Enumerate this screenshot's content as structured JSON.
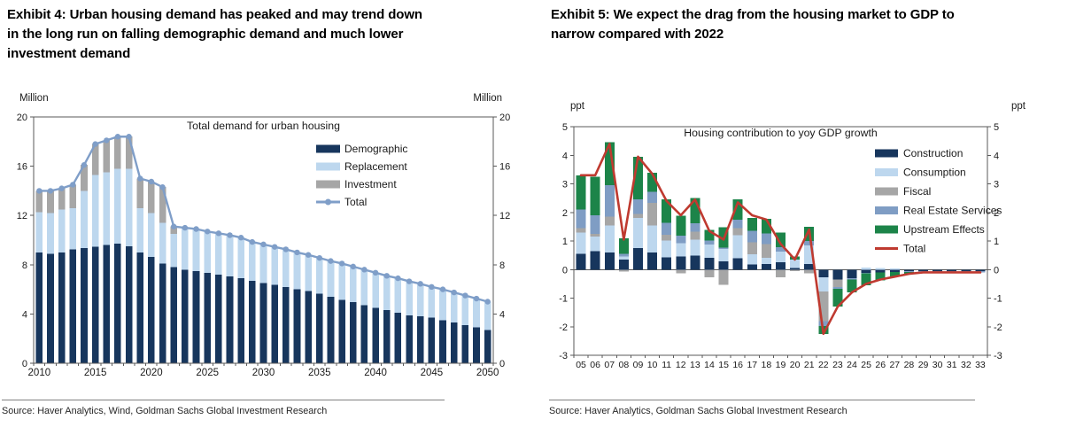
{
  "page": {
    "background": "#ffffff"
  },
  "left_panel": {
    "title_lines": [
      "Exhibit 4: Urban housing demand has peaked and may trend down",
      "in the long run on falling demographic demand and much lower",
      "investment demand"
    ],
    "source": "Source: Haver Analytics, Wind, Goldman Sachs Global Investment Research"
  },
  "right_panel": {
    "title_lines": [
      "Exhibit 5: We expect the drag from the housing market to GDP to",
      "narrow compared with 2022"
    ],
    "source": "Source: Haver Analytics, Goldman Sachs Global Investment Research"
  },
  "chart_data": [
    {
      "type": "bar",
      "stacked": true,
      "title": "Total demand for urban housing",
      "unit_left": "Million",
      "unit_right": "Million",
      "ylim": [
        0,
        20
      ],
      "yticks": [
        0,
        4,
        8,
        12,
        16,
        20
      ],
      "grid": false,
      "legend_position": "upper-right-inside",
      "x_label_every": 5,
      "x": [
        "2010",
        "2011",
        "2012",
        "2013",
        "2014",
        "2015",
        "2016",
        "2017",
        "2018",
        "2019",
        "2020",
        "2021",
        "2022",
        "2023",
        "2024",
        "2025",
        "2026",
        "2027",
        "2028",
        "2029",
        "2030",
        "2031",
        "2032",
        "2033",
        "2034",
        "2035",
        "2036",
        "2037",
        "2038",
        "2039",
        "2040",
        "2041",
        "2042",
        "2043",
        "2044",
        "2045",
        "2046",
        "2047",
        "2048",
        "2049",
        "2050"
      ],
      "series": [
        {
          "name": "Demographic",
          "color": "#17365d",
          "values": [
            9.0,
            8.9,
            9.0,
            9.25,
            9.35,
            9.45,
            9.6,
            9.7,
            9.5,
            9.0,
            8.65,
            8.1,
            7.8,
            7.6,
            7.5,
            7.35,
            7.2,
            7.05,
            6.9,
            6.7,
            6.5,
            6.35,
            6.2,
            6.0,
            5.85,
            5.65,
            5.4,
            5.15,
            4.95,
            4.7,
            4.5,
            4.3,
            4.1,
            3.9,
            3.8,
            3.7,
            3.5,
            3.3,
            3.1,
            2.9,
            2.7
          ]
        },
        {
          "name": "Replacement",
          "color": "#bdd7ee",
          "values": [
            3.25,
            3.3,
            3.5,
            3.35,
            4.65,
            5.85,
            5.9,
            6.1,
            6.3,
            3.6,
            3.55,
            3.3,
            2.7,
            3.35,
            3.35,
            3.35,
            3.35,
            3.35,
            3.3,
            3.15,
            3.15,
            3.1,
            3.05,
            3.0,
            2.95,
            2.9,
            2.9,
            2.95,
            2.9,
            2.9,
            2.85,
            2.8,
            2.8,
            2.75,
            2.65,
            2.5,
            2.5,
            2.45,
            2.4,
            2.35,
            2.3
          ]
        },
        {
          "name": "Investment",
          "color": "#a6a6a6",
          "values": [
            1.75,
            1.8,
            1.7,
            1.9,
            2.1,
            2.5,
            2.6,
            2.6,
            2.6,
            2.4,
            2.55,
            2.9,
            0.6,
            0.05,
            0.05,
            0,
            0,
            0,
            0,
            0,
            0,
            0,
            0,
            0,
            0,
            0,
            0,
            0,
            0,
            0,
            0,
            0,
            0,
            0,
            0,
            0,
            0,
            0,
            0,
            0,
            0
          ]
        }
      ],
      "line": {
        "name": "Total",
        "color": "#7f9ec8",
        "markers": true,
        "values": [
          14.0,
          14.0,
          14.2,
          14.5,
          16.1,
          17.8,
          18.1,
          18.4,
          18.4,
          15.0,
          14.75,
          14.3,
          11.1,
          11.0,
          10.9,
          10.7,
          10.55,
          10.4,
          10.2,
          9.85,
          9.65,
          9.45,
          9.25,
          9.0,
          8.8,
          8.55,
          8.3,
          8.1,
          7.85,
          7.6,
          7.35,
          7.1,
          6.9,
          6.65,
          6.45,
          6.2,
          6.0,
          5.75,
          5.5,
          5.25,
          5.0
        ]
      }
    },
    {
      "type": "bar",
      "stacked": true,
      "title": "Housing contribution to yoy GDP growth",
      "unit_left": "ppt",
      "unit_right": "ppt",
      "ylim": [
        -3,
        5
      ],
      "yticks": [
        -3,
        -2,
        -1,
        0,
        1,
        2,
        3,
        4,
        5
      ],
      "grid": false,
      "legend_position": "upper-right-inside",
      "x_label_every": 1,
      "x": [
        "05",
        "06",
        "07",
        "08",
        "09",
        "10",
        "11",
        "12",
        "13",
        "14",
        "15",
        "16",
        "17",
        "18",
        "19",
        "20",
        "21",
        "22",
        "23",
        "24",
        "25",
        "26",
        "27",
        "28",
        "29",
        "30",
        "31",
        "32",
        "33"
      ],
      "series": [
        {
          "name": "Construction",
          "color": "#17365d",
          "values": [
            0.55,
            0.65,
            0.6,
            0.35,
            0.75,
            0.6,
            0.43,
            0.46,
            0.49,
            0.41,
            0.29,
            0.4,
            0.18,
            0.2,
            0.25,
            0.05,
            0.2,
            -0.27,
            -0.35,
            -0.3,
            -0.12,
            -0.1,
            -0.08,
            -0.06,
            -0.05,
            -0.05,
            -0.05,
            -0.05,
            -0.05
          ]
        },
        {
          "name": "Consumption",
          "color": "#bdd7ee",
          "values": [
            0.75,
            0.5,
            0.95,
            0.1,
            1.05,
            0.94,
            0.59,
            0.46,
            0.55,
            0.46,
            0.43,
            0.8,
            0.35,
            0.21,
            0.38,
            0.3,
            0.65,
            -0.5,
            0,
            0,
            0.07,
            0.05,
            0.04,
            0,
            0,
            0,
            0,
            0,
            0
          ]
        },
        {
          "name": "Fiscal",
          "color": "#a6a6a6",
          "values": [
            0.15,
            0.1,
            0.3,
            -0.07,
            0.15,
            0.8,
            0.2,
            -0.13,
            0.29,
            -0.27,
            -0.54,
            0.25,
            0.43,
            0.48,
            -0.27,
            -0.05,
            -0.13,
            -1.03,
            -0.27,
            0,
            0,
            0,
            0,
            0,
            0,
            0,
            0,
            0,
            0
          ]
        },
        {
          "name": "Real Estate Services",
          "color": "#7f9dc4",
          "values": [
            0.65,
            0.65,
            1.1,
            0.1,
            0.5,
            0.38,
            0.41,
            0.26,
            0.29,
            0.15,
            0.05,
            0.3,
            0.39,
            0.38,
            0.16,
            0,
            0.15,
            -0.17,
            -0.05,
            -0.05,
            -0.01,
            0,
            0,
            -0.03,
            -0.05,
            -0.05,
            -0.05,
            -0.05,
            -0.05
          ]
        },
        {
          "name": "Upstream Effects",
          "color": "#1c8449",
          "values": [
            1.2,
            1.35,
            1.5,
            0.55,
            1.5,
            0.66,
            0.82,
            0.71,
            0.88,
            0.36,
            0.71,
            0.7,
            0.46,
            0.51,
            0.51,
            0.1,
            0.5,
            -0.28,
            -0.63,
            -0.45,
            -0.42,
            -0.28,
            -0.16,
            -0.06,
            0,
            0,
            0,
            0,
            0
          ]
        }
      ],
      "line": {
        "name": "Total",
        "color": "#bf3a30",
        "markers": false,
        "values": [
          3.3,
          3.3,
          4.4,
          1.05,
          3.95,
          3.35,
          2.4,
          1.9,
          2.45,
          1.35,
          1.05,
          2.35,
          1.9,
          1.75,
          0.9,
          0.35,
          1.4,
          -2.25,
          -1.3,
          -0.8,
          -0.5,
          -0.35,
          -0.25,
          -0.15,
          -0.1,
          -0.1,
          -0.1,
          -0.1,
          -0.1
        ]
      }
    }
  ]
}
